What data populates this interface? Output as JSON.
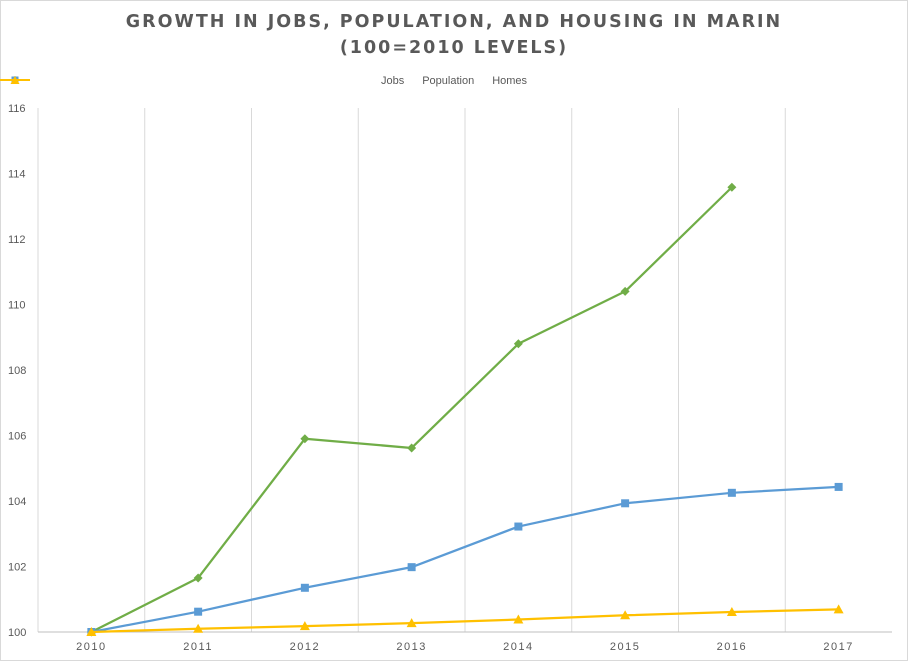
{
  "title_line_1": "GROWTH IN JOBS, POPULATION, AND HOUSING IN MARIN",
  "title_line_2": "(100=2010 LEVELS)",
  "chart_data": {
    "type": "line",
    "title": "GROWTH IN JOBS, POPULATION, AND HOUSING IN MARIN (100=2010 LEVELS)",
    "xlabel": "",
    "ylabel": "",
    "x": [
      "2010",
      "2011",
      "2012",
      "2013",
      "2014",
      "2015",
      "2016",
      "2017"
    ],
    "ylim": [
      100,
      116
    ],
    "yticks": [
      100,
      102,
      104,
      106,
      108,
      110,
      112,
      114,
      116
    ],
    "grid": "vertical",
    "legend": "top-center",
    "series": [
      {
        "name": "Jobs",
        "color": "#70ad47",
        "marker": "diamond",
        "values": [
          100,
          101.65,
          105.9,
          105.62,
          108.8,
          110.4,
          113.58,
          null
        ]
      },
      {
        "name": "Population",
        "color": "#5b9bd5",
        "marker": "square",
        "values": [
          100,
          100.62,
          101.35,
          101.98,
          103.22,
          103.93,
          104.25,
          104.43
        ]
      },
      {
        "name": "Homes",
        "color": "#ffc000",
        "marker": "triangle",
        "values": [
          100,
          100.1,
          100.18,
          100.27,
          100.38,
          100.51,
          100.61,
          100.69
        ]
      }
    ]
  }
}
